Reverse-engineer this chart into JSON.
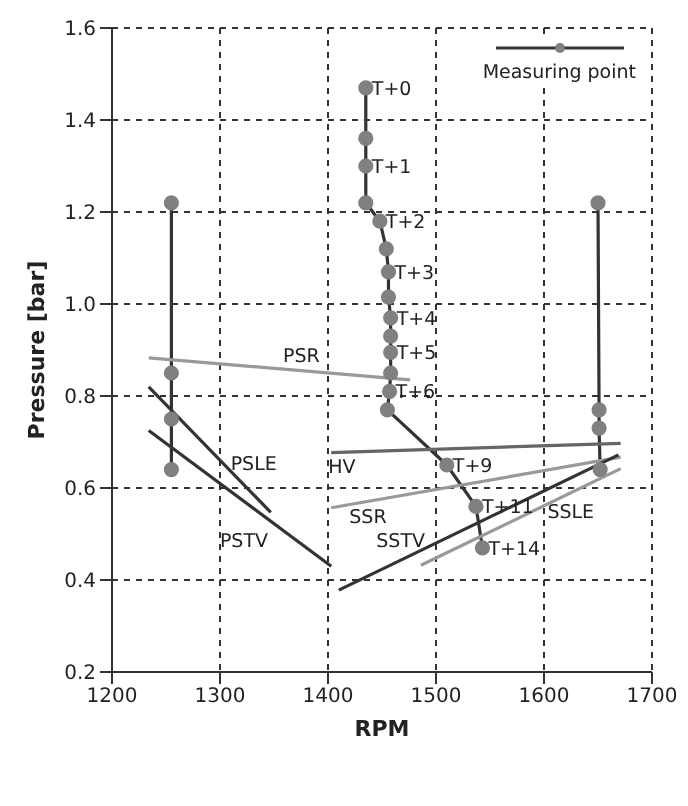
{
  "chart_data": {
    "type": "line",
    "xlabel": "RPM",
    "ylabel": "Pressure [bar]",
    "xlim": [
      1200,
      1700
    ],
    "xticks": [
      1200,
      1300,
      1400,
      1500,
      1600,
      1700
    ],
    "ylim": [
      0.2,
      1.6
    ],
    "yticks": [
      {
        "value": 0.2,
        "label": "0.2"
      },
      {
        "value": 0.4,
        "label": "0.4"
      },
      {
        "value": 0.6,
        "label": "0.6"
      },
      {
        "value": 0.8,
        "label": "0.8"
      },
      {
        "value": 1.0,
        "label": "1.0"
      },
      {
        "value": 1.2,
        "label": "1.2"
      },
      {
        "value": 1.4,
        "label": "1.4"
      },
      {
        "value": 1.6,
        "label": "1.6"
      }
    ],
    "grid": true,
    "legend": "top right",
    "line_style": "solid",
    "series": [
      {
        "name": "Measuring point",
        "color": "#333333",
        "marker": "circle",
        "x": [
          1435,
          1435,
          1435,
          1435,
          1448,
          1454,
          1456,
          1456,
          1458,
          1458,
          1458,
          1458,
          1457,
          1455,
          1510,
          1537,
          1543
        ],
        "values": [
          1.47,
          1.36,
          1.3,
          1.22,
          1.18,
          1.12,
          1.07,
          1.015,
          0.97,
          0.93,
          0.895,
          0.85,
          0.81,
          0.77,
          0.65,
          0.56,
          0.47
        ],
        "value_labels": [
          "T+0",
          null,
          "T+1",
          null,
          "T+2",
          null,
          "T+3",
          null,
          "T+4",
          null,
          "T+5",
          null,
          "T+6",
          null,
          "T+9",
          "T+11",
          "T+14"
        ]
      },
      {
        "color": "#333333",
        "marker": "circle",
        "x": [
          1255,
          1255,
          1255,
          1255
        ],
        "values": [
          1.22,
          0.85,
          0.75,
          0.64
        ]
      },
      {
        "color": "#333333",
        "marker": "circle",
        "x": [
          1650,
          1651,
          1651,
          1652
        ],
        "values": [
          1.22,
          0.77,
          0.73,
          0.64
        ]
      },
      {
        "name": "PSR",
        "color": "#999999",
        "marker": "none",
        "x": [
          1234,
          1476
        ],
        "values": [
          0.883,
          0.835
        ]
      },
      {
        "name": "PSLE",
        "color": "#333333",
        "marker": "none",
        "x": [
          1234,
          1347
        ],
        "values": [
          0.82,
          0.547
        ]
      },
      {
        "name": "PSTV",
        "color": "#333333",
        "marker": "none",
        "x": [
          1234,
          1403
        ],
        "values": [
          0.725,
          0.43
        ]
      },
      {
        "name": "HV",
        "color": "#666666",
        "marker": "none",
        "x": [
          1403,
          1671
        ],
        "values": [
          0.677,
          0.697
        ]
      },
      {
        "name": "SSR",
        "color": "#999999",
        "marker": "none",
        "x": [
          1403,
          1671
        ],
        "values": [
          0.557,
          0.667
        ]
      },
      {
        "name": "SSTV",
        "color": "#333333",
        "marker": "none",
        "x": [
          1410,
          1669
        ],
        "values": [
          0.378,
          0.672
        ]
      },
      {
        "name": "SSLE",
        "color": "#999999",
        "marker": "none",
        "x": [
          1486,
          1671
        ],
        "values": [
          0.432,
          0.642
        ]
      }
    ]
  }
}
